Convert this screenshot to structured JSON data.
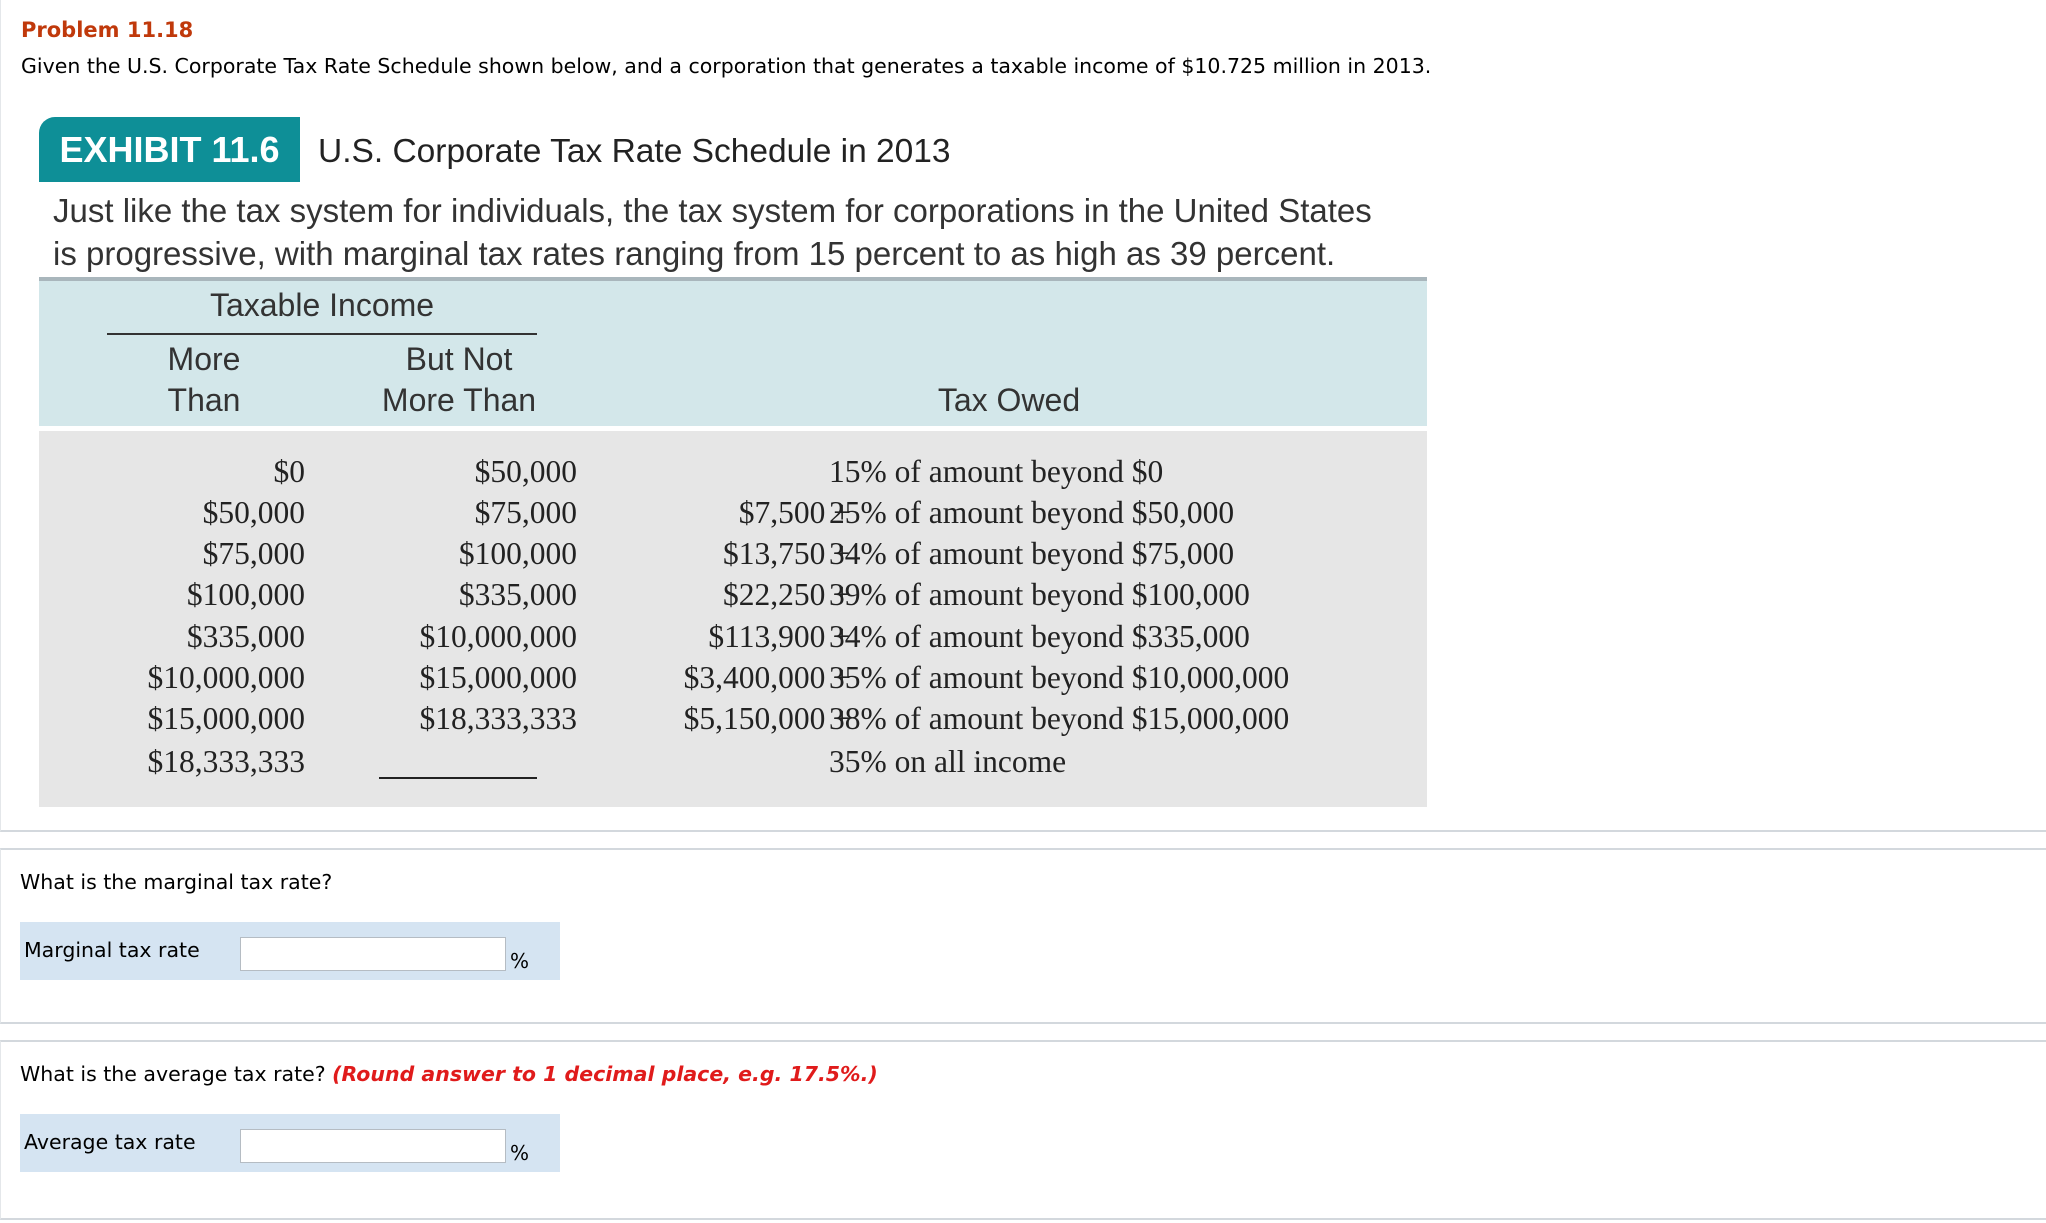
{
  "problem": {
    "title": "Problem 11.18",
    "intro": "Given the U.S. Corporate Tax Rate Schedule shown below, and a corporation that generates a taxable income of $10.725 million in 2013."
  },
  "exhibit": {
    "badge": "EXHIBIT 11.6",
    "title": "U.S. Corporate Tax Rate Schedule in 2013",
    "description_line1": "Just like the tax system for individuals, the tax system for corporations in the United States",
    "description_line2": "is progressive, with marginal tax rates ranging from 15 percent to as high as 39 percent.",
    "header": {
      "group": "Taxable Income",
      "more_than_1": "More",
      "more_than_2": "Than",
      "not_more_than_1": "But Not",
      "not_more_than_2": "More Than",
      "tax_owed": "Tax Owed"
    },
    "rows": [
      {
        "more": "$0",
        "notmore": "$50,000",
        "owed_base": "",
        "owed_rule": "15% of amount beyond $0"
      },
      {
        "more": "$50,000",
        "notmore": "$75,000",
        "owed_base": "$7,500 +",
        "owed_rule": "25% of amount beyond $50,000"
      },
      {
        "more": "$75,000",
        "notmore": "$100,000",
        "owed_base": "$13,750 +",
        "owed_rule": "34% of amount beyond $75,000"
      },
      {
        "more": "$100,000",
        "notmore": "$335,000",
        "owed_base": "$22,250 +",
        "owed_rule": "39% of amount beyond $100,000"
      },
      {
        "more": "$335,000",
        "notmore": "$10,000,000",
        "owed_base": "$113,900 +",
        "owed_rule": "34% of amount beyond $335,000"
      },
      {
        "more": "$10,000,000",
        "notmore": "$15,000,000",
        "owed_base": "$3,400,000 +",
        "owed_rule": "35% of amount beyond $10,000,000"
      },
      {
        "more": "$15,000,000",
        "notmore": "$18,333,333",
        "owed_base": "$5,150,000 +",
        "owed_rule": "38% of amount beyond $15,000,000"
      },
      {
        "more": "$18,333,333",
        "notmore": "",
        "owed_base": "",
        "owed_rule": "35% on all income"
      }
    ]
  },
  "question1": {
    "text": "What is the marginal tax rate?",
    "label": "Marginal tax rate",
    "value": "",
    "unit": "%"
  },
  "question2": {
    "text": "What is the average tax rate?",
    "hint": "(Round answer to 1 decimal place, e.g. 17.5%.)",
    "label": "Average tax rate",
    "value": "",
    "unit": "%"
  },
  "colors": {
    "problem_title": "#c0390b",
    "badge": "#0e8f97",
    "header_bg": "#d3e7ea",
    "body_bg": "#e6e6e6",
    "answer_row_bg": "#d5e4f2",
    "hint": "#e01b1b"
  }
}
